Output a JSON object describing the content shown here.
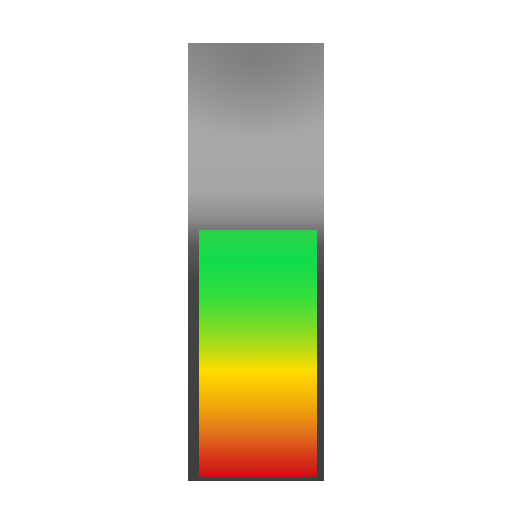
{
  "meter": {
    "level": 0.57,
    "colors": {
      "frame_top": "#8a8a8a",
      "frame_mid": "#a9a9a8",
      "frame_bottom": "#3e3e3e",
      "fill_top": "#2fd24c",
      "fill_green": "#10dc4c",
      "fill_yellow": "#ffdc00",
      "fill_orange": "#e0741a",
      "fill_bottom": "#cc0e14"
    }
  }
}
